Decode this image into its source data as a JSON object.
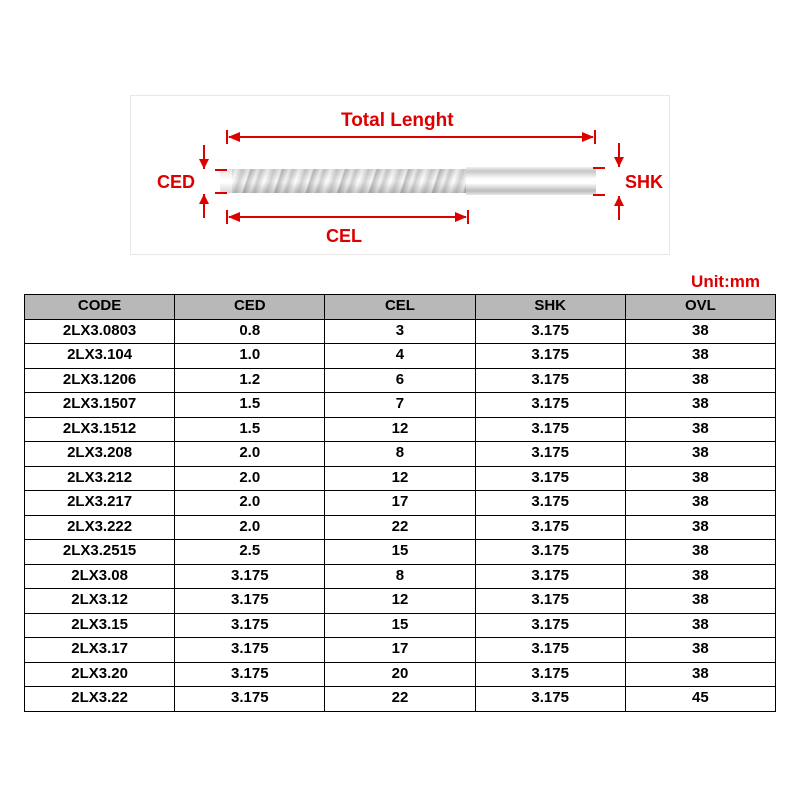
{
  "diagram": {
    "label_total_length": "Total Lenght",
    "label_ced": "CED",
    "label_cel": "CEL",
    "label_shk": "SHK",
    "accent_color": "#dd0000",
    "label_fontsize": 18,
    "label_fontsize_small": 17
  },
  "unit_label": {
    "text": "Unit:mm",
    "color": "#dd0000"
  },
  "table": {
    "header_bg": "#b8b8b8",
    "border_color": "#000000",
    "columns": [
      "CODE",
      "CED",
      "CEL",
      "SHK",
      "OVL"
    ],
    "rows": [
      [
        "2LX3.0803",
        "0.8",
        "3",
        "3.175",
        "38"
      ],
      [
        "2LX3.104",
        "1.0",
        "4",
        "3.175",
        "38"
      ],
      [
        "2LX3.1206",
        "1.2",
        "6",
        "3.175",
        "38"
      ],
      [
        "2LX3.1507",
        "1.5",
        "7",
        "3.175",
        "38"
      ],
      [
        "2LX3.1512",
        "1.5",
        "12",
        "3.175",
        "38"
      ],
      [
        "2LX3.208",
        "2.0",
        "8",
        "3.175",
        "38"
      ],
      [
        "2LX3.212",
        "2.0",
        "12",
        "3.175",
        "38"
      ],
      [
        "2LX3.217",
        "2.0",
        "17",
        "3.175",
        "38"
      ],
      [
        "2LX3.222",
        "2.0",
        "22",
        "3.175",
        "38"
      ],
      [
        "2LX3.2515",
        "2.5",
        "15",
        "3.175",
        "38"
      ],
      [
        "2LX3.08",
        "3.175",
        "8",
        "3.175",
        "38"
      ],
      [
        "2LX3.12",
        "3.175",
        "12",
        "3.175",
        "38"
      ],
      [
        "2LX3.15",
        "3.175",
        "15",
        "3.175",
        "38"
      ],
      [
        "2LX3.17",
        "3.175",
        "17",
        "3.175",
        "38"
      ],
      [
        "2LX3.20",
        "3.175",
        "20",
        "3.175",
        "38"
      ],
      [
        "2LX3.22",
        "3.175",
        "22",
        "3.175",
        "45"
      ]
    ]
  }
}
